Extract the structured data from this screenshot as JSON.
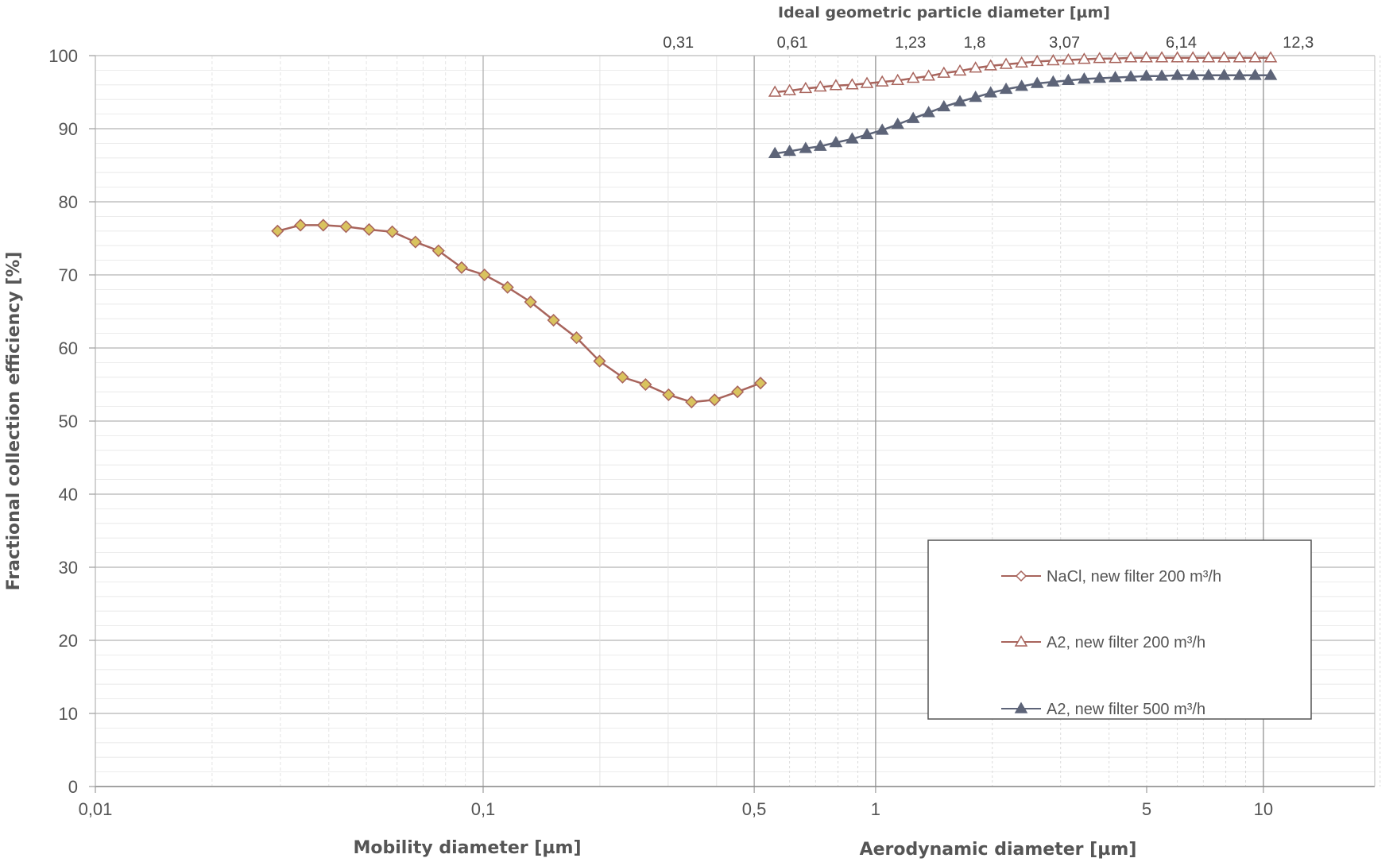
{
  "chart_data": {
    "type": "line",
    "title": "",
    "ylabel": "Fractional collection efficiency [%]",
    "ylim": [
      0,
      100
    ],
    "yticks": [
      "0",
      "10",
      "20",
      "30",
      "40",
      "50",
      "60",
      "70",
      "80",
      "90",
      "100"
    ],
    "grid": true,
    "legend_placement": "bottom-right",
    "x_axes": {
      "mobility": {
        "label": "Mobility diameter [µm]",
        "scale": "log",
        "range": [
          0.01,
          0.5
        ],
        "ticks": [
          {
            "v": 0.01,
            "t": "0,01"
          },
          {
            "v": 0.1,
            "t": "0,1"
          },
          {
            "v": 0.5,
            "t": "0,5"
          }
        ]
      },
      "aerodynamic": {
        "label": "Aerodynamic diameter [µm]",
        "scale": "log",
        "range": [
          0.5,
          30
        ],
        "ticks": [
          {
            "v": 1,
            "t": "1"
          },
          {
            "v": 5,
            "t": "5"
          },
          {
            "v": 10,
            "t": "10"
          }
        ]
      },
      "geometric_top": {
        "label": "Ideal geometric particle diameter [µm]",
        "ticks": [
          {
            "v": 0.31,
            "t": "0,31"
          },
          {
            "v": 0.61,
            "t": "0,61"
          },
          {
            "v": 1.23,
            "t": "1,23"
          },
          {
            "v": 1.8,
            "t": "1,8"
          },
          {
            "v": 3.07,
            "t": "3,07"
          },
          {
            "v": 6.14,
            "t": "6,14"
          },
          {
            "v": 12.3,
            "t": "12,3"
          }
        ]
      }
    },
    "series": [
      {
        "name": "NaCl, new filter 200 m³/h",
        "x_axis": "mobility",
        "marker": "diamond",
        "color": "#a8645c",
        "marker_fill": "#d9c35e",
        "x": [
          0.0295,
          0.0338,
          0.0387,
          0.0443,
          0.0508,
          0.0583,
          0.0669,
          0.0767,
          0.088,
          0.1008,
          0.1156,
          0.1325,
          0.1519,
          0.1741,
          0.1996,
          0.2288,
          0.2623,
          0.3007,
          0.3447,
          0.3951,
          0.4529,
          0.5192
        ],
        "y": [
          76.0,
          76.8,
          76.8,
          76.6,
          76.2,
          75.9,
          74.5,
          73.3,
          71.0,
          70.0,
          68.3,
          66.3,
          63.8,
          61.4,
          58.2,
          56.0,
          55.0,
          53.6,
          52.6,
          52.9,
          54.0,
          55.2
        ]
      },
      {
        "name": "A2, new filter  200 m³/h",
        "x_axis": "aerodynamic",
        "marker": "triangle-open",
        "color": "#a8645c",
        "marker_fill": "#ffffff",
        "x": [
          0.55,
          0.6,
          0.66,
          0.72,
          0.79,
          0.87,
          0.95,
          1.04,
          1.14,
          1.25,
          1.37,
          1.5,
          1.65,
          1.81,
          1.98,
          2.17,
          2.38,
          2.61,
          2.87,
          3.14,
          3.45,
          3.78,
          4.15,
          4.55,
          4.99,
          5.47,
          6.0,
          6.58,
          7.22,
          7.92,
          8.68,
          9.52,
          10.44
        ],
        "y": [
          95.0,
          95.2,
          95.5,
          95.7,
          95.9,
          96.0,
          96.2,
          96.4,
          96.6,
          96.9,
          97.2,
          97.6,
          97.9,
          98.3,
          98.6,
          98.8,
          99.0,
          99.2,
          99.3,
          99.4,
          99.5,
          99.6,
          99.6,
          99.7,
          99.7,
          99.7,
          99.7,
          99.7,
          99.7,
          99.7,
          99.7,
          99.7,
          99.7
        ]
      },
      {
        "name": "A2, new filter  500 m³/h",
        "x_axis": "aerodynamic",
        "marker": "triangle-filled",
        "color": "#5d6478",
        "marker_fill": "#5d6478",
        "x": [
          0.55,
          0.6,
          0.66,
          0.72,
          0.79,
          0.87,
          0.95,
          1.04,
          1.14,
          1.25,
          1.37,
          1.5,
          1.65,
          1.81,
          1.98,
          2.17,
          2.38,
          2.61,
          2.87,
          3.14,
          3.45,
          3.78,
          4.15,
          4.55,
          4.99,
          5.47,
          6.0,
          6.58,
          7.22,
          7.92,
          8.68,
          9.52,
          10.44
        ],
        "y": [
          86.6,
          86.9,
          87.3,
          87.6,
          88.1,
          88.6,
          89.2,
          89.8,
          90.6,
          91.4,
          92.2,
          93.0,
          93.7,
          94.3,
          94.9,
          95.4,
          95.8,
          96.2,
          96.4,
          96.6,
          96.8,
          96.9,
          97.0,
          97.1,
          97.2,
          97.2,
          97.3,
          97.3,
          97.3,
          97.3,
          97.3,
          97.3,
          97.3
        ]
      }
    ]
  }
}
